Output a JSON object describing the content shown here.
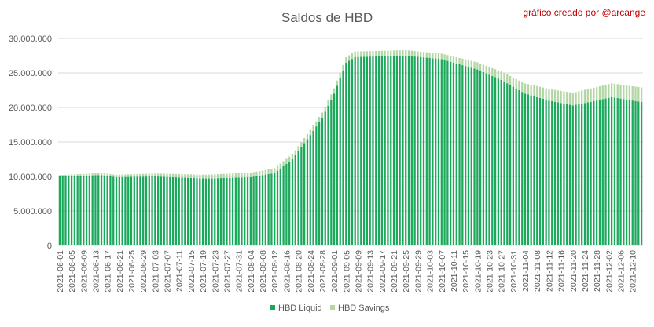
{
  "chart_data": {
    "type": "bar",
    "stacked": true,
    "title": "Saldos de HBD",
    "credit": "gráfico creado por @arcange",
    "start_date": "2021-06-01",
    "end_date": "2021-12-13",
    "xlabel": "",
    "ylabel": "",
    "ylim": [
      0,
      30000000
    ],
    "yticks": [
      "0",
      "5.000.000",
      "10.000.000",
      "15.000.000",
      "20.000.000",
      "25.000.000",
      "30.000.000"
    ],
    "xticks": [
      "2021-06-01",
      "2021-06-05",
      "2021-06-09",
      "2021-06-13",
      "2021-06-17",
      "2021-06-21",
      "2021-06-25",
      "2021-06-29",
      "2021-07-03",
      "2021-07-07",
      "2021-07-11",
      "2021-07-15",
      "2021-07-19",
      "2021-07-23",
      "2021-07-27",
      "2021-07-31",
      "2021-08-04",
      "2021-08-08",
      "2021-08-12",
      "2021-08-16",
      "2021-08-20",
      "2021-08-24",
      "2021-08-28",
      "2021-09-01",
      "2021-09-05",
      "2021-09-09",
      "2021-09-13",
      "2021-09-17",
      "2021-09-21",
      "2021-09-25",
      "2021-09-29",
      "2021-10-03",
      "2021-10-07",
      "2021-10-11",
      "2021-10-15",
      "2021-10-19",
      "2021-10-23",
      "2021-10-27",
      "2021-10-31",
      "2021-11-04",
      "2021-11-08",
      "2021-11-12",
      "2021-11-16",
      "2021-11-20",
      "2021-11-24",
      "2021-11-28",
      "2021-12-02",
      "2021-12-06",
      "2021-12-10"
    ],
    "grid": true,
    "legend": "bottom",
    "series": [
      {
        "name": "HBD Liquid",
        "color": "#1aa85b",
        "anchors": [
          [
            "2021-06-01",
            10000000
          ],
          [
            "2021-06-15",
            10200000
          ],
          [
            "2021-06-20",
            9900000
          ],
          [
            "2021-07-03",
            10000000
          ],
          [
            "2021-07-20",
            9700000
          ],
          [
            "2021-08-04",
            9900000
          ],
          [
            "2021-08-12",
            10500000
          ],
          [
            "2021-08-18",
            12500000
          ],
          [
            "2021-08-24",
            16000000
          ],
          [
            "2021-08-28",
            18500000
          ],
          [
            "2021-09-01",
            22000000
          ],
          [
            "2021-09-05",
            26500000
          ],
          [
            "2021-09-08",
            27300000
          ],
          [
            "2021-09-25",
            27500000
          ],
          [
            "2021-10-07",
            27000000
          ],
          [
            "2021-10-19",
            25500000
          ],
          [
            "2021-10-27",
            24000000
          ],
          [
            "2021-11-04",
            22000000
          ],
          [
            "2021-11-12",
            21000000
          ],
          [
            "2021-11-20",
            20300000
          ],
          [
            "2021-11-28",
            21000000
          ],
          [
            "2021-12-03",
            21500000
          ],
          [
            "2021-12-13",
            20800000
          ]
        ]
      },
      {
        "name": "HBD Savings",
        "color": "#b3d7a4",
        "anchors": [
          [
            "2021-06-01",
            200000
          ],
          [
            "2021-07-27",
            600000
          ],
          [
            "2021-08-12",
            700000
          ],
          [
            "2021-09-09",
            800000
          ],
          [
            "2021-10-07",
            800000
          ],
          [
            "2021-10-27",
            1200000
          ],
          [
            "2021-11-08",
            1600000
          ],
          [
            "2021-11-24",
            1900000
          ],
          [
            "2021-12-13",
            2100000
          ]
        ]
      }
    ]
  }
}
